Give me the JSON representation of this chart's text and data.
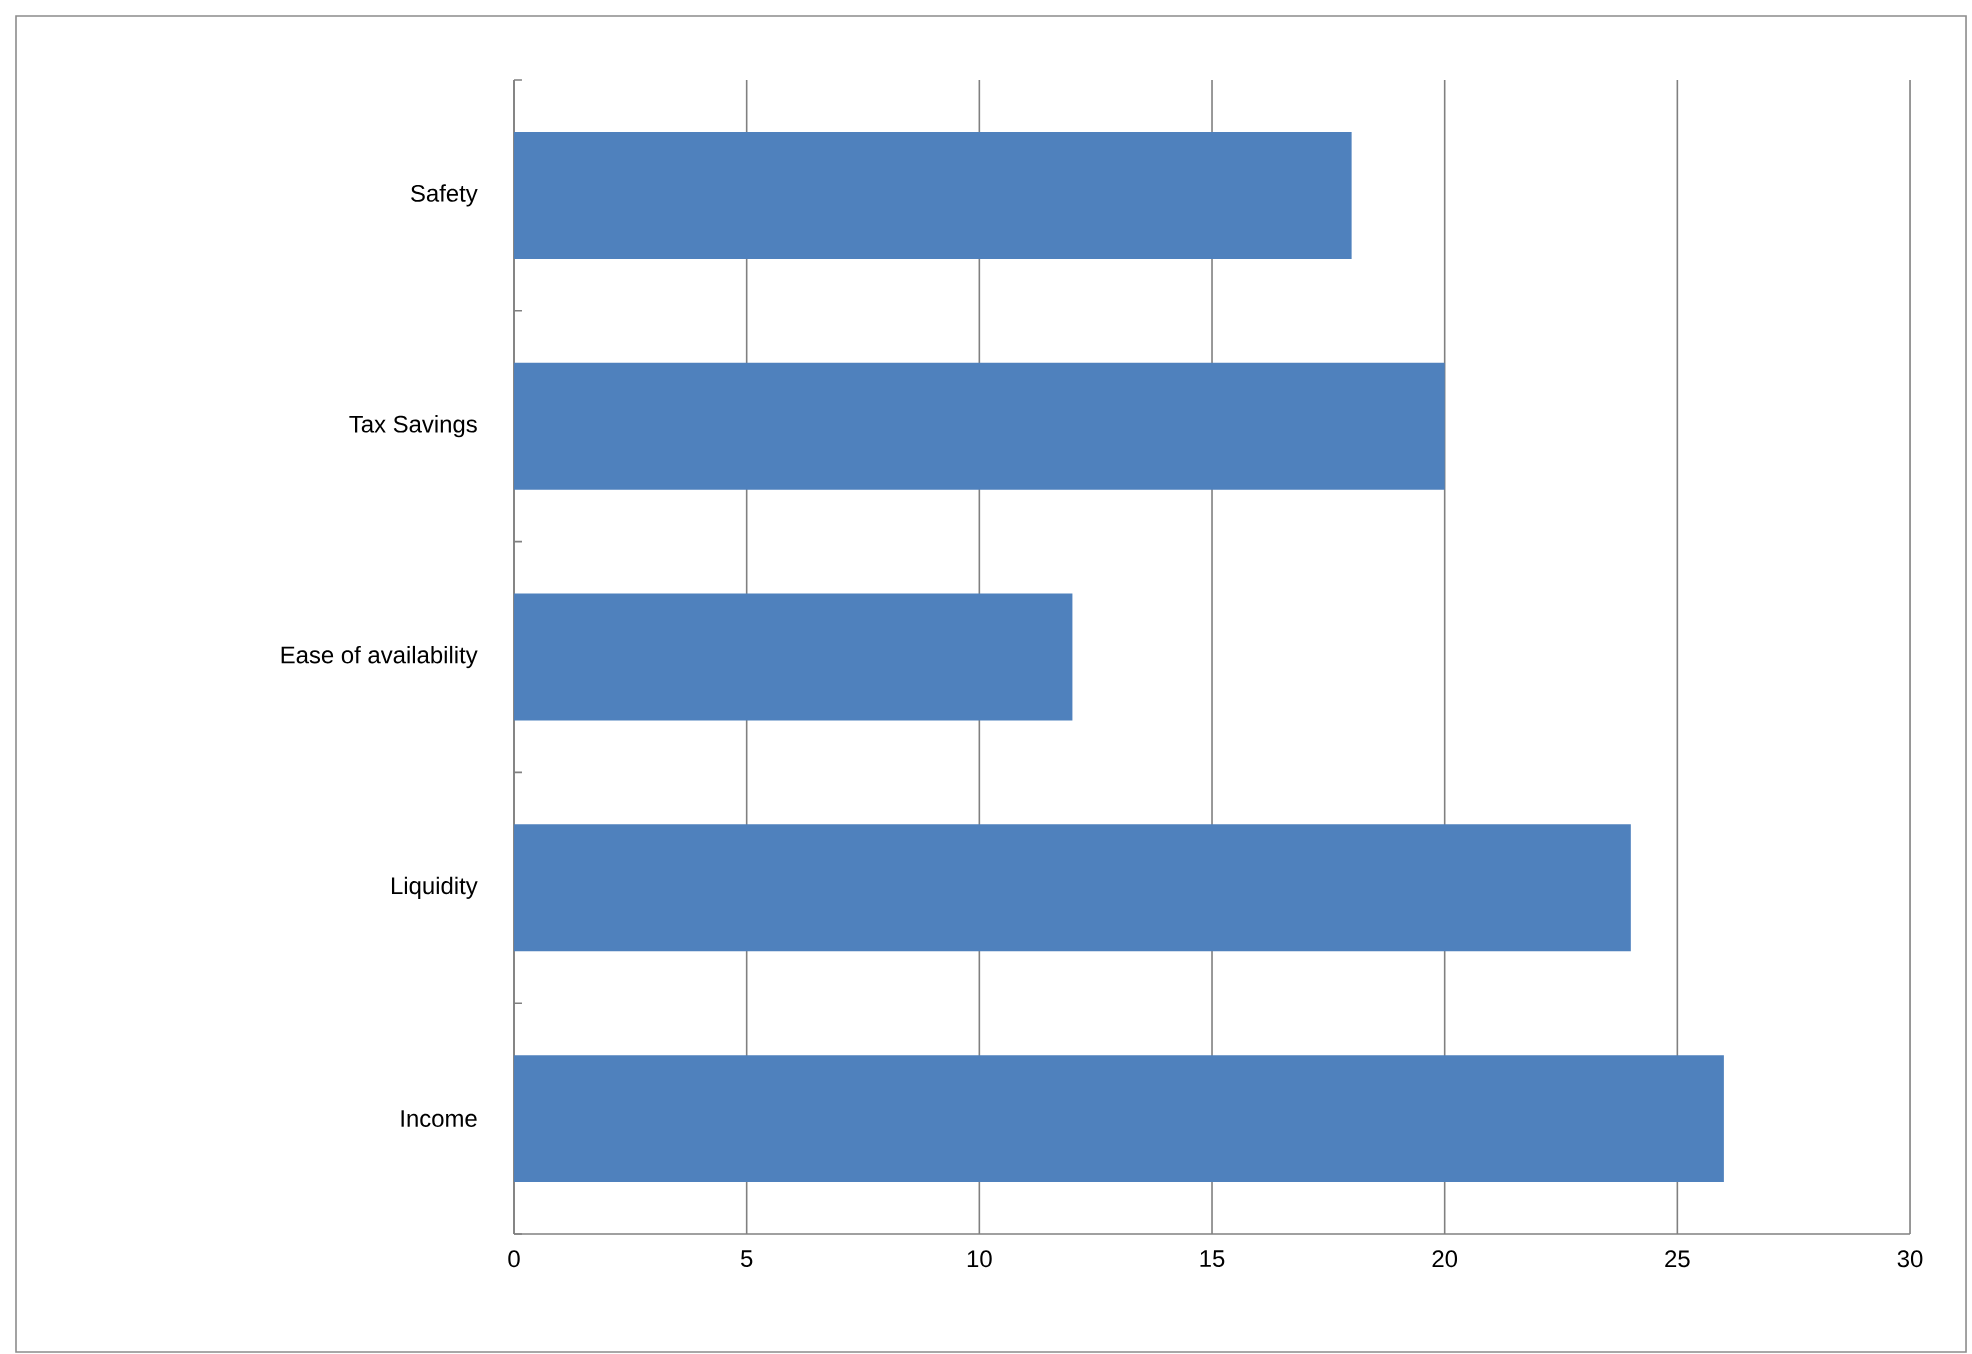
{
  "chart_data": {
    "type": "bar",
    "orientation": "horizontal",
    "categories": [
      "Safety",
      "Tax Savings",
      "Ease of availability",
      "Liquidity",
      "Income"
    ],
    "values": [
      18,
      20,
      12,
      24,
      26
    ],
    "color": "#4f81bd",
    "xlim": [
      0,
      30
    ],
    "xticks": [
      0,
      5,
      10,
      15,
      20,
      25,
      30
    ],
    "grid": "x"
  }
}
